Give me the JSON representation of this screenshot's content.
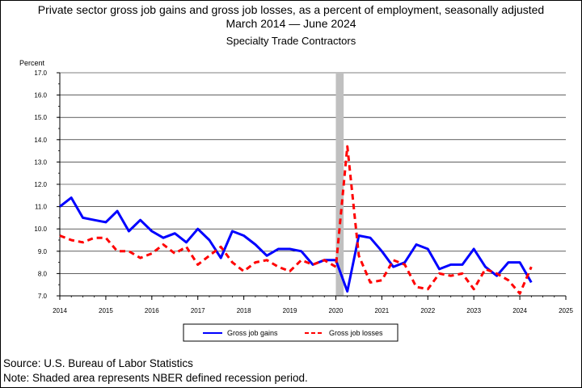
{
  "chart_data": {
    "type": "line",
    "title_line1": "Private sector gross job gains and gross job losses, as a percent of employment, seasonally adjusted",
    "title_line2": "March 2014 — June 2024",
    "subtitle": "Specialty Trade Contractors",
    "ylabel": "Percent",
    "ylim": [
      7.0,
      17.0
    ],
    "xlim": [
      2014,
      2025
    ],
    "y_ticks": [
      "7.0",
      "8.0",
      "9.0",
      "10.0",
      "11.0",
      "12.0",
      "13.0",
      "14.0",
      "15.0",
      "16.0",
      "17.0"
    ],
    "x_ticks": [
      "2014",
      "2015",
      "2016",
      "2017",
      "2018",
      "2019",
      "2020",
      "2021",
      "2022",
      "2023",
      "2024",
      "2025"
    ],
    "recession": {
      "start": 2020.0,
      "end": 2020.17
    },
    "x": [
      2014.0,
      2014.25,
      2014.5,
      2014.75,
      2015.0,
      2015.25,
      2015.5,
      2015.75,
      2016.0,
      2016.25,
      2016.5,
      2016.75,
      2017.0,
      2017.25,
      2017.5,
      2017.75,
      2018.0,
      2018.25,
      2018.5,
      2018.75,
      2019.0,
      2019.25,
      2019.5,
      2019.75,
      2020.0,
      2020.25,
      2020.5,
      2020.75,
      2021.0,
      2021.25,
      2021.5,
      2021.75,
      2022.0,
      2022.25,
      2022.5,
      2022.75,
      2023.0,
      2023.25,
      2023.5,
      2023.75,
      2024.0,
      2024.25
    ],
    "series": [
      {
        "name": "Gross job gains",
        "color": "#0000ff",
        "style": "solid",
        "values": [
          11.0,
          11.4,
          10.5,
          10.4,
          10.3,
          10.8,
          9.9,
          10.4,
          9.9,
          9.6,
          9.8,
          9.4,
          10.0,
          9.5,
          8.7,
          9.9,
          9.7,
          9.3,
          8.8,
          9.1,
          9.1,
          9.0,
          8.4,
          8.6,
          8.6,
          7.2,
          9.7,
          9.6,
          9.0,
          8.3,
          8.5,
          9.3,
          9.1,
          8.2,
          8.4,
          8.4,
          9.1,
          8.3,
          7.9,
          8.5,
          8.5,
          7.6
        ]
      },
      {
        "name": "Gross job losses",
        "color": "#ff0000",
        "style": "dashed",
        "values": [
          9.7,
          9.5,
          9.4,
          9.6,
          9.6,
          9.0,
          9.0,
          8.7,
          8.9,
          9.3,
          8.9,
          9.2,
          8.4,
          8.8,
          9.2,
          8.5,
          8.1,
          8.5,
          8.6,
          8.3,
          8.1,
          8.6,
          8.4,
          8.6,
          8.3,
          13.7,
          8.8,
          7.6,
          7.7,
          8.6,
          8.4,
          7.4,
          7.3,
          8.0,
          7.9,
          8.0,
          7.3,
          8.2,
          8.0,
          7.7,
          7.1,
          8.3
        ]
      }
    ],
    "legend_position": "bottom-center"
  },
  "footer": {
    "source": "Source: U.S. Bureau of Labor Statistics",
    "note": "Note: Shaded area represents NBER defined recession period."
  }
}
